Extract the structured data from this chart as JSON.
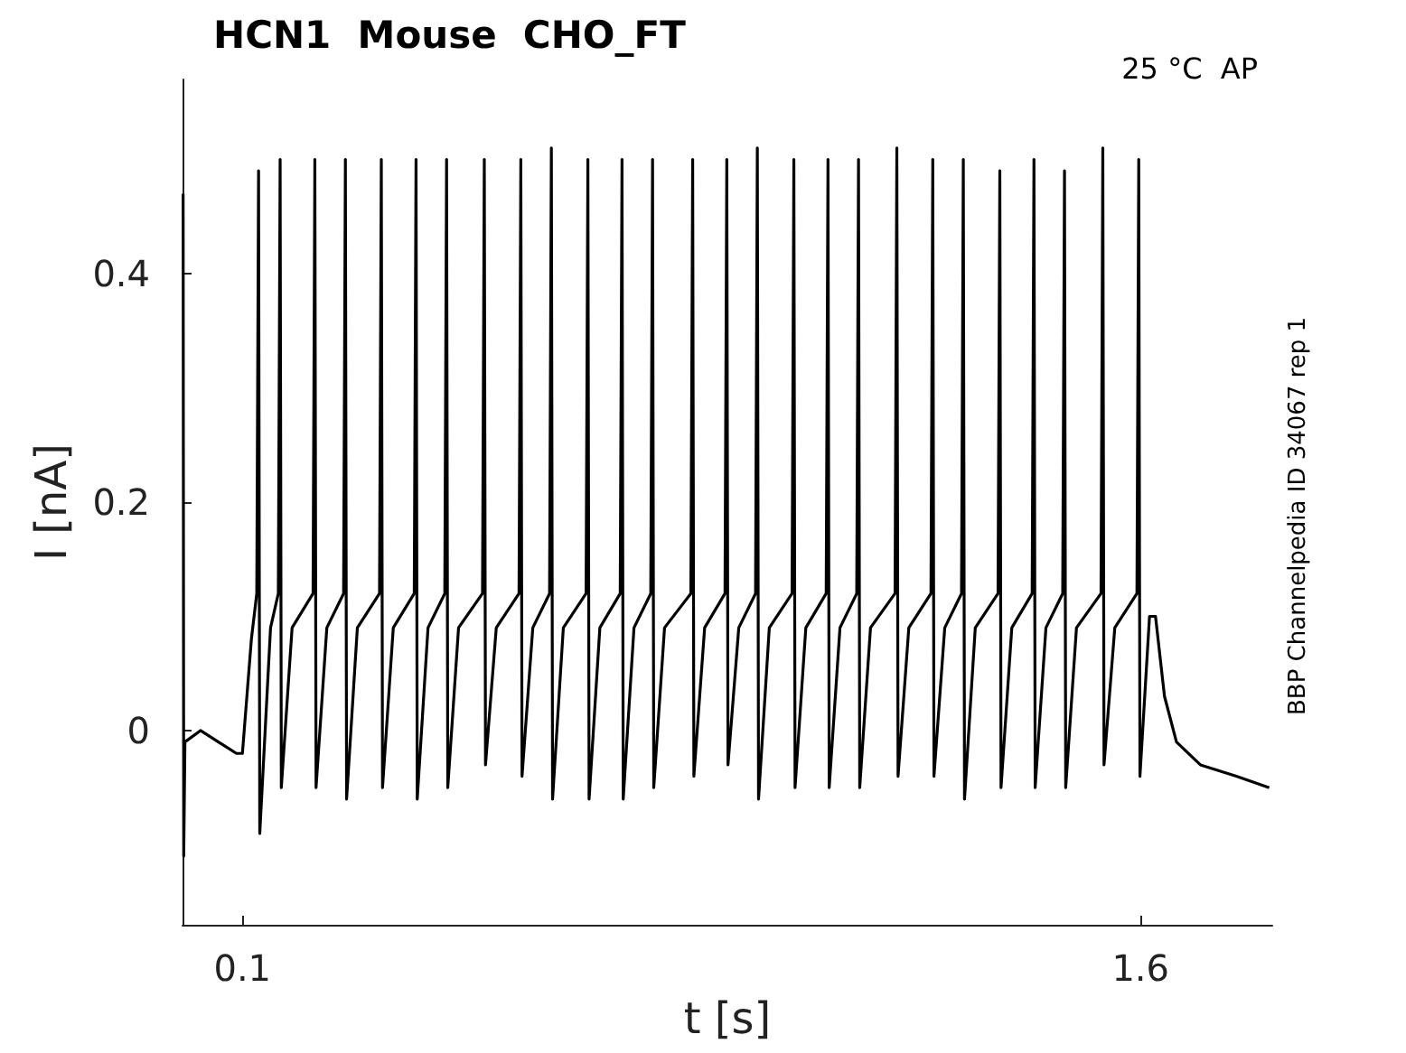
{
  "chart_data": {
    "type": "line",
    "title": "HCN1  Mouse  CHO_FT",
    "xlabel": "t [s]",
    "ylabel": "I [nA]",
    "annotations": [
      "25 °C  AP",
      "BBP Channelpedia ID 34067 rep 1"
    ],
    "x": [
      0.001,
      0.002,
      0.004,
      0.03,
      0.06,
      0.09,
      0.1,
      0.115,
      0.124,
      0.127,
      0.129,
      0.147,
      0.16,
      0.163,
      0.165,
      0.183,
      0.218,
      0.221,
      0.223,
      0.241,
      0.269,
      0.272,
      0.274,
      0.292,
      0.329,
      0.332,
      0.334,
      0.352,
      0.387,
      0.39,
      0.392,
      0.41,
      0.438,
      0.441,
      0.443,
      0.461,
      0.501,
      0.504,
      0.506,
      0.524,
      0.562,
      0.565,
      0.567,
      0.585,
      0.613,
      0.616,
      0.618,
      0.636,
      0.674,
      0.677,
      0.679,
      0.697,
      0.731,
      0.734,
      0.736,
      0.754,
      0.782,
      0.785,
      0.787,
      0.805,
      0.849,
      0.852,
      0.854,
      0.872,
      0.906,
      0.909,
      0.911,
      0.929,
      0.957,
      0.96,
      0.962,
      0.98,
      1.018,
      1.021,
      1.023,
      1.041,
      1.075,
      1.078,
      1.08,
      1.098,
      1.126,
      1.129,
      1.131,
      1.149,
      1.19,
      1.193,
      1.195,
      1.213,
      1.25,
      1.253,
      1.255,
      1.273,
      1.301,
      1.304,
      1.306,
      1.324,
      1.362,
      1.365,
      1.367,
      1.385,
      1.419,
      1.422,
      1.424,
      1.442,
      1.47,
      1.473,
      1.475,
      1.493,
      1.534,
      1.537,
      1.539,
      1.557,
      1.594,
      1.597,
      1.599,
      1.615,
      1.625,
      1.64,
      1.66,
      1.7,
      1.76,
      1.815
    ],
    "series": [
      {
        "color": "#000000",
        "values": [
          0.47,
          -0.11,
          -0.01,
          0.0,
          -0.01,
          -0.02,
          -0.02,
          0.08,
          0.12,
          0.49,
          -0.09,
          0.09,
          0.12,
          0.5,
          -0.05,
          0.09,
          0.12,
          0.5,
          -0.05,
          0.09,
          0.12,
          0.5,
          -0.06,
          0.09,
          0.12,
          0.5,
          -0.05,
          0.09,
          0.12,
          0.5,
          -0.06,
          0.09,
          0.12,
          0.5,
          -0.05,
          0.09,
          0.12,
          0.5,
          -0.03,
          0.09,
          0.12,
          0.5,
          -0.04,
          0.09,
          0.12,
          0.51,
          -0.06,
          0.09,
          0.12,
          0.5,
          -0.06,
          0.09,
          0.12,
          0.5,
          -0.06,
          0.09,
          0.12,
          0.5,
          -0.05,
          0.09,
          0.12,
          0.5,
          -0.04,
          0.09,
          0.12,
          0.5,
          -0.03,
          0.09,
          0.12,
          0.51,
          -0.06,
          0.09,
          0.12,
          0.5,
          -0.05,
          0.09,
          0.12,
          0.5,
          -0.05,
          0.09,
          0.12,
          0.5,
          -0.05,
          0.09,
          0.12,
          0.51,
          -0.04,
          0.09,
          0.12,
          0.5,
          -0.04,
          0.09,
          0.12,
          0.5,
          -0.06,
          0.09,
          0.12,
          0.49,
          -0.05,
          0.09,
          0.12,
          0.5,
          -0.05,
          0.09,
          0.12,
          0.49,
          -0.05,
          0.09,
          0.12,
          0.51,
          -0.03,
          0.09,
          0.12,
          0.5,
          -0.04,
          0.1,
          0.1,
          0.03,
          -0.01,
          -0.03,
          -0.04,
          -0.05
        ]
      }
    ],
    "xlim": [
      0,
      1.82
    ],
    "xticks": [
      0.1,
      1.6
    ],
    "ylim": [
      -0.17,
      0.57
    ],
    "yticks": [
      0,
      0.2,
      0.4
    ],
    "grid": false,
    "marker": "none",
    "line_style": "solid"
  }
}
